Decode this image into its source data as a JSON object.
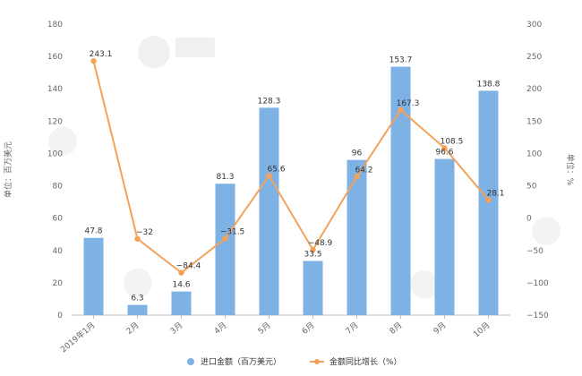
{
  "chart_data": {
    "type": "bar+line",
    "categories": [
      "2019年1月",
      "2月",
      "3月",
      "4月",
      "5月",
      "6月",
      "7月",
      "8月",
      "9月",
      "10月"
    ],
    "series": [
      {
        "name": "进口金额（百万美元）",
        "type": "bar",
        "axis": "left",
        "color": "#7eb2e4",
        "values": [
          47.8,
          6.3,
          14.6,
          81.3,
          128.3,
          33.5,
          96,
          153.7,
          96.6,
          138.8
        ],
        "labels": [
          "47.8",
          "6.3",
          "14.6",
          "81.3",
          "128.3",
          "33.5",
          "96",
          "153.7",
          "96.6",
          "138.8"
        ]
      },
      {
        "name": "金额同比增长（%）",
        "type": "line",
        "axis": "right",
        "color": "#f4a259",
        "values": [
          243.1,
          -32,
          -84.4,
          -31.5,
          65.6,
          -48.9,
          64.2,
          167.3,
          108.5,
          28.1
        ],
        "labels": [
          "243.1",
          "−32",
          "−84.4",
          "−31.5",
          "65.6",
          "−48.9",
          "64.2",
          "167.3",
          "108.5",
          "28.1"
        ]
      }
    ],
    "ylabel_left": "单位：百万美元",
    "ylabel_right": "单位：%",
    "ylim_left": [
      0,
      180
    ],
    "ylim_right": [
      -150,
      300
    ],
    "yticks_left": [
      "0",
      "20",
      "40",
      "60",
      "80",
      "100",
      "120",
      "140",
      "160",
      "180"
    ],
    "yticks_right": [
      "−150",
      "−100",
      "−50",
      "0",
      "50",
      "100",
      "150",
      "200",
      "250",
      "300"
    ],
    "legend_position": "bottom-center",
    "grid": false
  }
}
